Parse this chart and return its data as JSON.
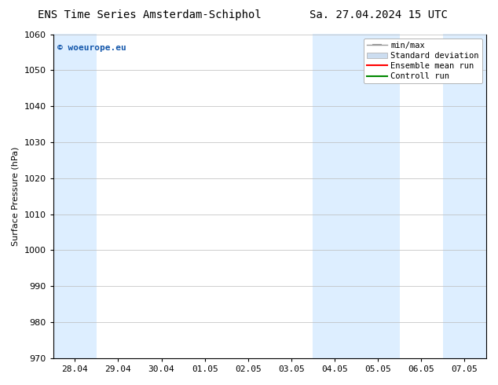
{
  "title_left": "ENS Time Series Amsterdam-Schiphol",
  "title_right": "Sa. 27.04.2024 15 UTC",
  "ylabel": "Surface Pressure (hPa)",
  "ylim": [
    970,
    1060
  ],
  "yticks": [
    970,
    980,
    990,
    1000,
    1010,
    1020,
    1030,
    1040,
    1050,
    1060
  ],
  "x_tick_labels": [
    "28.04",
    "29.04",
    "30.04",
    "01.05",
    "02.05",
    "03.05",
    "04.05",
    "05.05",
    "06.05",
    "07.05"
  ],
  "x_tick_positions": [
    0,
    1,
    2,
    3,
    4,
    5,
    6,
    7,
    8,
    9
  ],
  "xlim": [
    -0.5,
    9.5
  ],
  "shaded_bands": [
    {
      "x_start": -0.5,
      "x_end": 0.5
    },
    {
      "x_start": 5.5,
      "x_end": 7.5
    },
    {
      "x_start": 8.5,
      "x_end": 9.5
    }
  ],
  "shaded_color": "#ddeeff",
  "watermark_text": "© woeurope.eu",
  "watermark_color": "#1155aa",
  "legend_items": [
    {
      "label": "min/max",
      "color": "#999999",
      "type": "errorbar"
    },
    {
      "label": "Standard deviation",
      "color": "#ccddf0",
      "type": "rect"
    },
    {
      "label": "Ensemble mean run",
      "color": "#ff0000",
      "type": "line"
    },
    {
      "label": "Controll run",
      "color": "#008800",
      "type": "line"
    }
  ],
  "background_color": "#ffffff",
  "grid_color": "#bbbbbb",
  "title_fontsize": 10,
  "tick_label_fontsize": 8,
  "ylabel_fontsize": 8,
  "legend_fontsize": 7.5
}
